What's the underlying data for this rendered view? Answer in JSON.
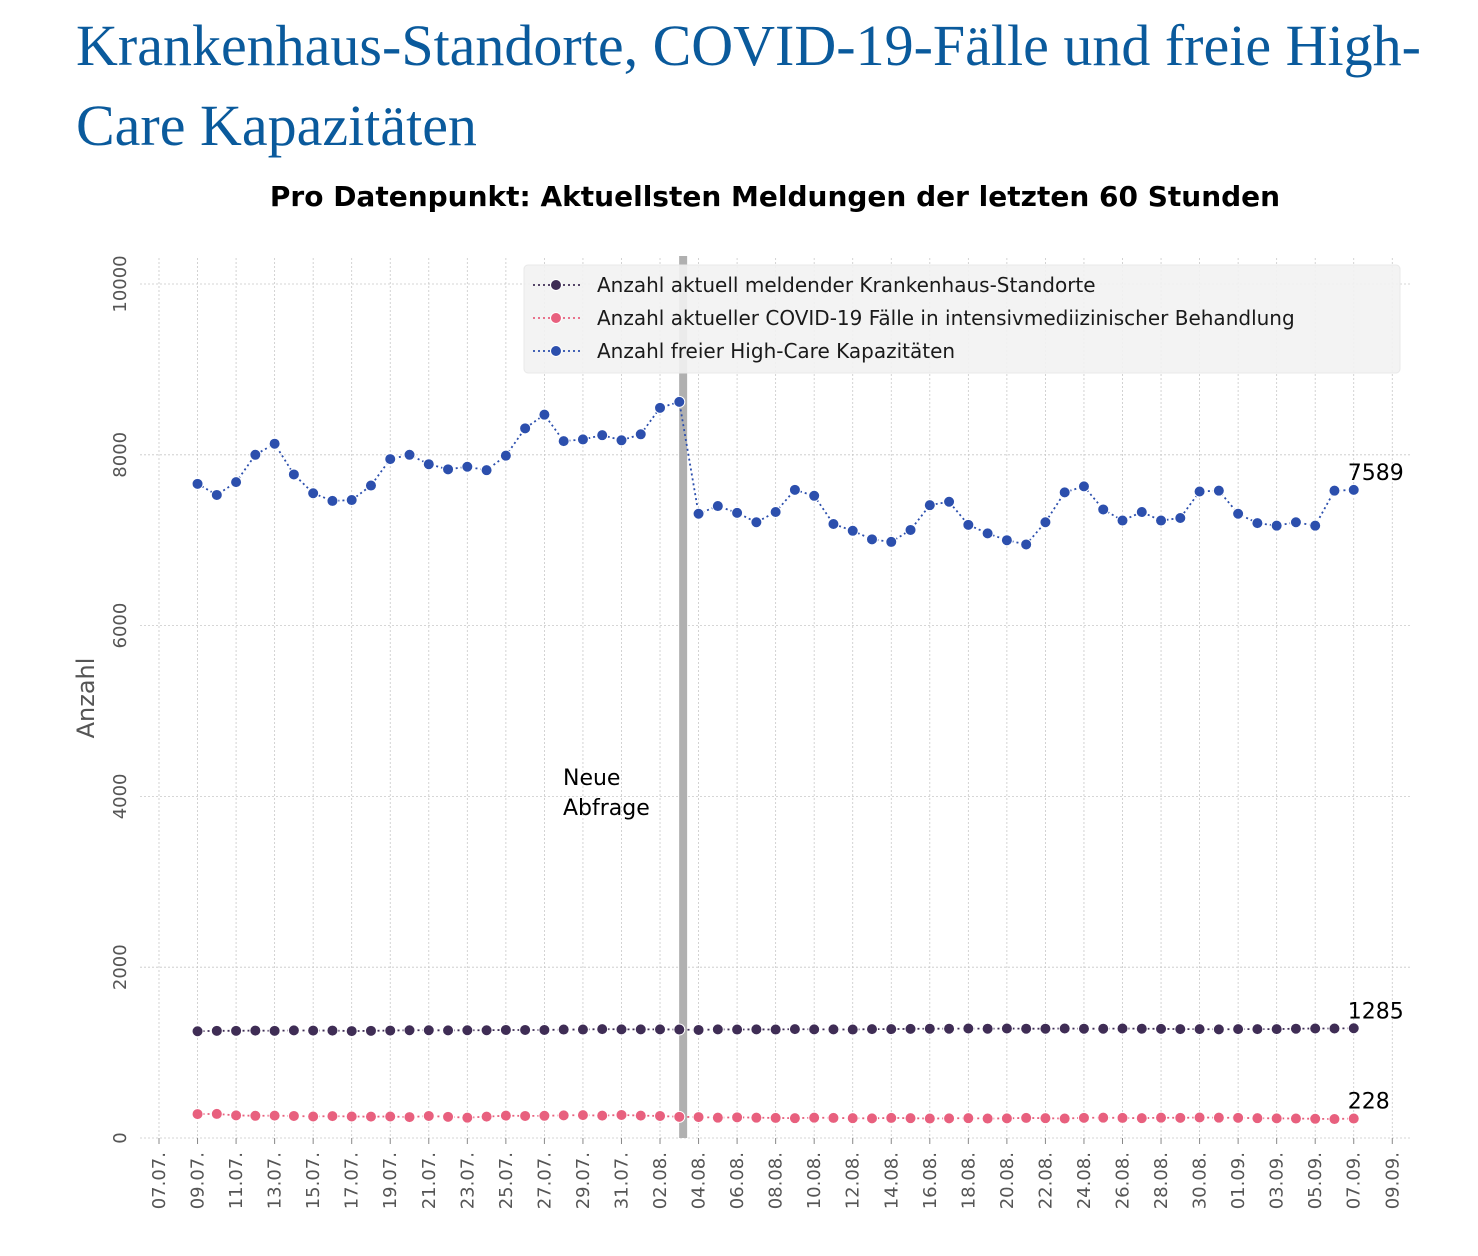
{
  "page": {
    "title": "Krankenhaus-Standorte, COVID-19-Fälle und freie High-Care Kapazitäten"
  },
  "chart_data": {
    "type": "line",
    "title": "Pro Datenpunkt: Aktuellsten Meldungen der letzten 60 Stunden",
    "xlabel": "",
    "ylabel": "Anzahl",
    "ylim": [
      0,
      10400
    ],
    "yticks": [
      0,
      2000,
      4000,
      6000,
      8000,
      10000
    ],
    "xtick_labels": [
      "07.07.",
      "09.07.",
      "11.07.",
      "13.07.",
      "15.07.",
      "17.07.",
      "19.07.",
      "21.07.",
      "23.07.",
      "25.07.",
      "27.07.",
      "29.07.",
      "31.07.",
      "02.08.",
      "04.08.",
      "06.08.",
      "08.08.",
      "10.08.",
      "12.08.",
      "14.08.",
      "16.08.",
      "18.08.",
      "20.08.",
      "22.08.",
      "24.08.",
      "26.08.",
      "28.08.",
      "30.08.",
      "01.09.",
      "03.09.",
      "05.09.",
      "07.09.",
      "09.09."
    ],
    "grid": true,
    "legend_position": "top-right",
    "annotation": {
      "text_line1": "Neue",
      "text_line2": "Abfrage",
      "x_day": 27.2
    },
    "series": [
      {
        "name": "Anzahl aktuell meldender Krankenhaus-Standorte",
        "color": "#3f2d55",
        "end_label": "1285",
        "values": [
          1250,
          1255,
          1255,
          1258,
          1255,
          1260,
          1258,
          1258,
          1252,
          1255,
          1258,
          1262,
          1262,
          1260,
          1262,
          1262,
          1265,
          1265,
          1265,
          1270,
          1270,
          1275,
          1272,
          1272,
          1272,
          1270,
          1265,
          1272,
          1270,
          1272,
          1270,
          1275,
          1272,
          1272,
          1270,
          1275,
          1275,
          1278,
          1280,
          1280,
          1282,
          1280,
          1282,
          1280,
          1280,
          1282,
          1280,
          1280,
          1282,
          1280,
          1278,
          1275,
          1275,
          1272,
          1275,
          1275,
          1275,
          1280,
          1282,
          1282,
          1285
        ]
      },
      {
        "name": "Anzahl aktueller COVID-19 Fälle in intensivmediizinischer Behandlung",
        "color": "#e8607e",
        "end_label": "228",
        "values": [
          280,
          282,
          265,
          260,
          262,
          258,
          252,
          256,
          252,
          250,
          252,
          245,
          258,
          248,
          238,
          250,
          262,
          258,
          260,
          265,
          268,
          262,
          270,
          262,
          258,
          248,
          245,
          238,
          242,
          238,
          235,
          232,
          238,
          235,
          232,
          230,
          235,
          232,
          228,
          230,
          232,
          228,
          230,
          235,
          232,
          228,
          236,
          238,
          235,
          232,
          238,
          236,
          240,
          238,
          236,
          232,
          230,
          228,
          225,
          222,
          228
        ]
      },
      {
        "name": "Anzahl freier High-Care Kapazitäten",
        "color": "#2c4fad",
        "end_label": "7589",
        "values": [
          7660,
          7530,
          7680,
          8000,
          8130,
          7770,
          7550,
          7460,
          7470,
          7640,
          7950,
          8000,
          7890,
          7830,
          7860,
          7820,
          7990,
          8310,
          8470,
          8160,
          8180,
          8230,
          8170,
          8240,
          8550,
          8620,
          7310,
          7400,
          7320,
          7210,
          7330,
          7590,
          7520,
          7190,
          7110,
          7010,
          6980,
          7120,
          7410,
          7450,
          7180,
          7080,
          7000,
          6950,
          7210,
          7560,
          7630,
          7360,
          7230,
          7330,
          7230,
          7260,
          7570,
          7580,
          7310,
          7200,
          7170,
          7210,
          7170,
          7580,
          7589
        ]
      }
    ]
  }
}
